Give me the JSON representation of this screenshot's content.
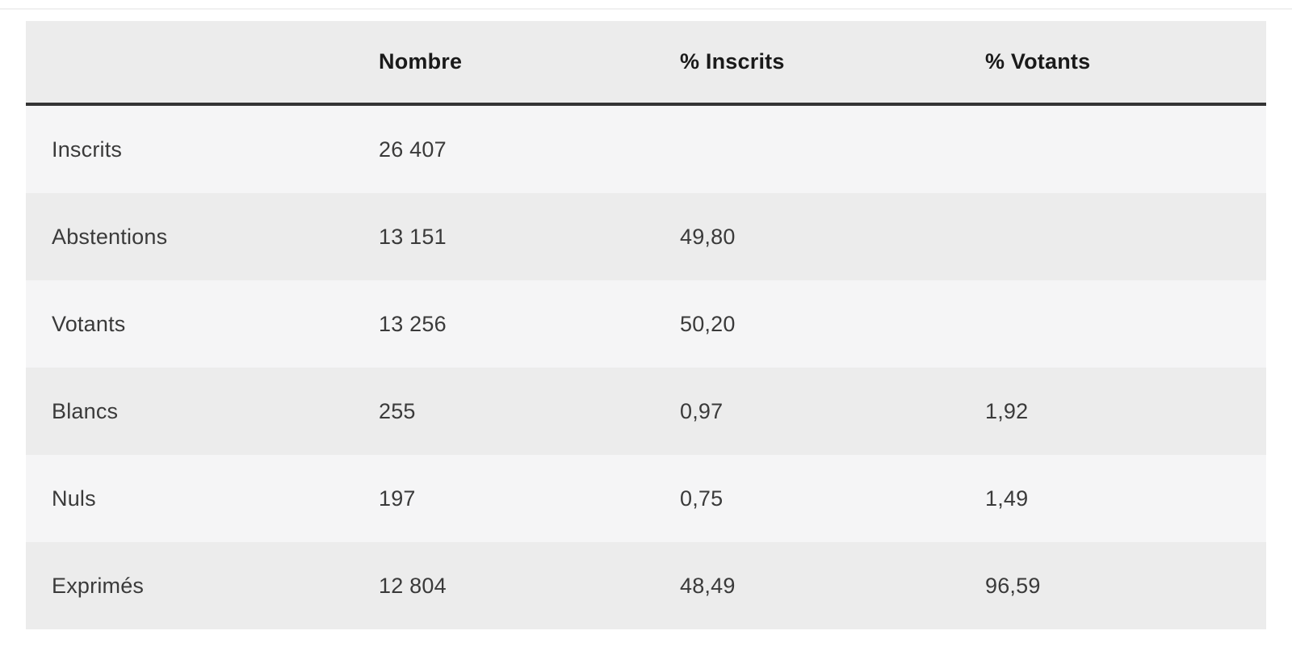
{
  "table": {
    "columns": [
      {
        "label": ""
      },
      {
        "label": "Nombre"
      },
      {
        "label": "% Inscrits"
      },
      {
        "label": "% Votants"
      }
    ],
    "rows": [
      {
        "label": "Inscrits",
        "nombre": "26 407",
        "pct_inscrits": "",
        "pct_votants": ""
      },
      {
        "label": "Abstentions",
        "nombre": "13 151",
        "pct_inscrits": "49,80",
        "pct_votants": ""
      },
      {
        "label": "Votants",
        "nombre": "13 256",
        "pct_inscrits": "50,20",
        "pct_votants": ""
      },
      {
        "label": "Blancs",
        "nombre": "255",
        "pct_inscrits": "0,97",
        "pct_votants": "1,92"
      },
      {
        "label": "Nuls",
        "nombre": "197",
        "pct_inscrits": "0,75",
        "pct_votants": "1,49"
      },
      {
        "label": "Exprimés",
        "nombre": "12 804",
        "pct_inscrits": "48,49",
        "pct_votants": "96,59"
      }
    ]
  },
  "colors": {
    "header_background": "#ececec",
    "row_light": "#f5f5f6",
    "row_dark": "#ececec",
    "divider": "#343434",
    "header_text": "#1a1a1a",
    "body_text": "#3a3a3a",
    "page_background": "#ffffff"
  }
}
